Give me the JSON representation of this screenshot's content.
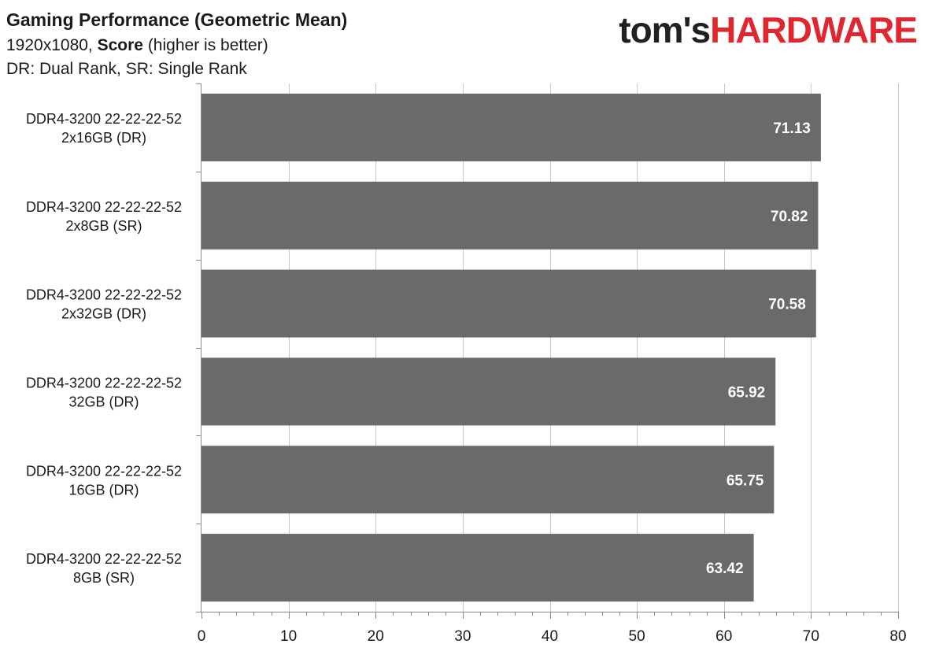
{
  "header": {
    "title": "Gaming Performance (Geometric Mean)",
    "subtitle_prefix": "1920x1080, ",
    "subtitle_bold": "Score",
    "subtitle_suffix": " (higher is better)",
    "note": "DR: Dual Rank, SR: Single Rank"
  },
  "logo": {
    "part1": "tom's",
    "part2": "HARDWARE"
  },
  "colors": {
    "bar": "#6b6969",
    "grid": "#c8c8c8",
    "axis": "#8a8a8a",
    "logo_accent": "#e0262f"
  },
  "chart_data": {
    "type": "bar",
    "orientation": "horizontal",
    "categories": [
      [
        "DDR4-3200 22-22-22-52",
        "2x16GB (DR)"
      ],
      [
        "DDR4-3200 22-22-22-52",
        "2x8GB (SR)"
      ],
      [
        "DDR4-3200 22-22-22-52",
        "2x32GB (DR)"
      ],
      [
        "DDR4-3200 22-22-22-52",
        "32GB (DR)"
      ],
      [
        "DDR4-3200 22-22-22-52",
        "16GB (DR)"
      ],
      [
        "DDR4-3200 22-22-22-52",
        "8GB (SR)"
      ]
    ],
    "values": [
      71.13,
      70.82,
      70.58,
      65.92,
      65.75,
      63.42
    ],
    "value_labels": [
      "71.13",
      "70.82",
      "70.58",
      "65.92",
      "65.75",
      "63.42"
    ],
    "xlim": [
      0,
      80
    ],
    "xticks": [
      0,
      10,
      20,
      30,
      40,
      50,
      60,
      70,
      80
    ],
    "xtick_labels": [
      "0",
      "10",
      "20",
      "30",
      "40",
      "50",
      "60",
      "70",
      "80"
    ],
    "minor_tick_step": 2,
    "grid": true
  }
}
